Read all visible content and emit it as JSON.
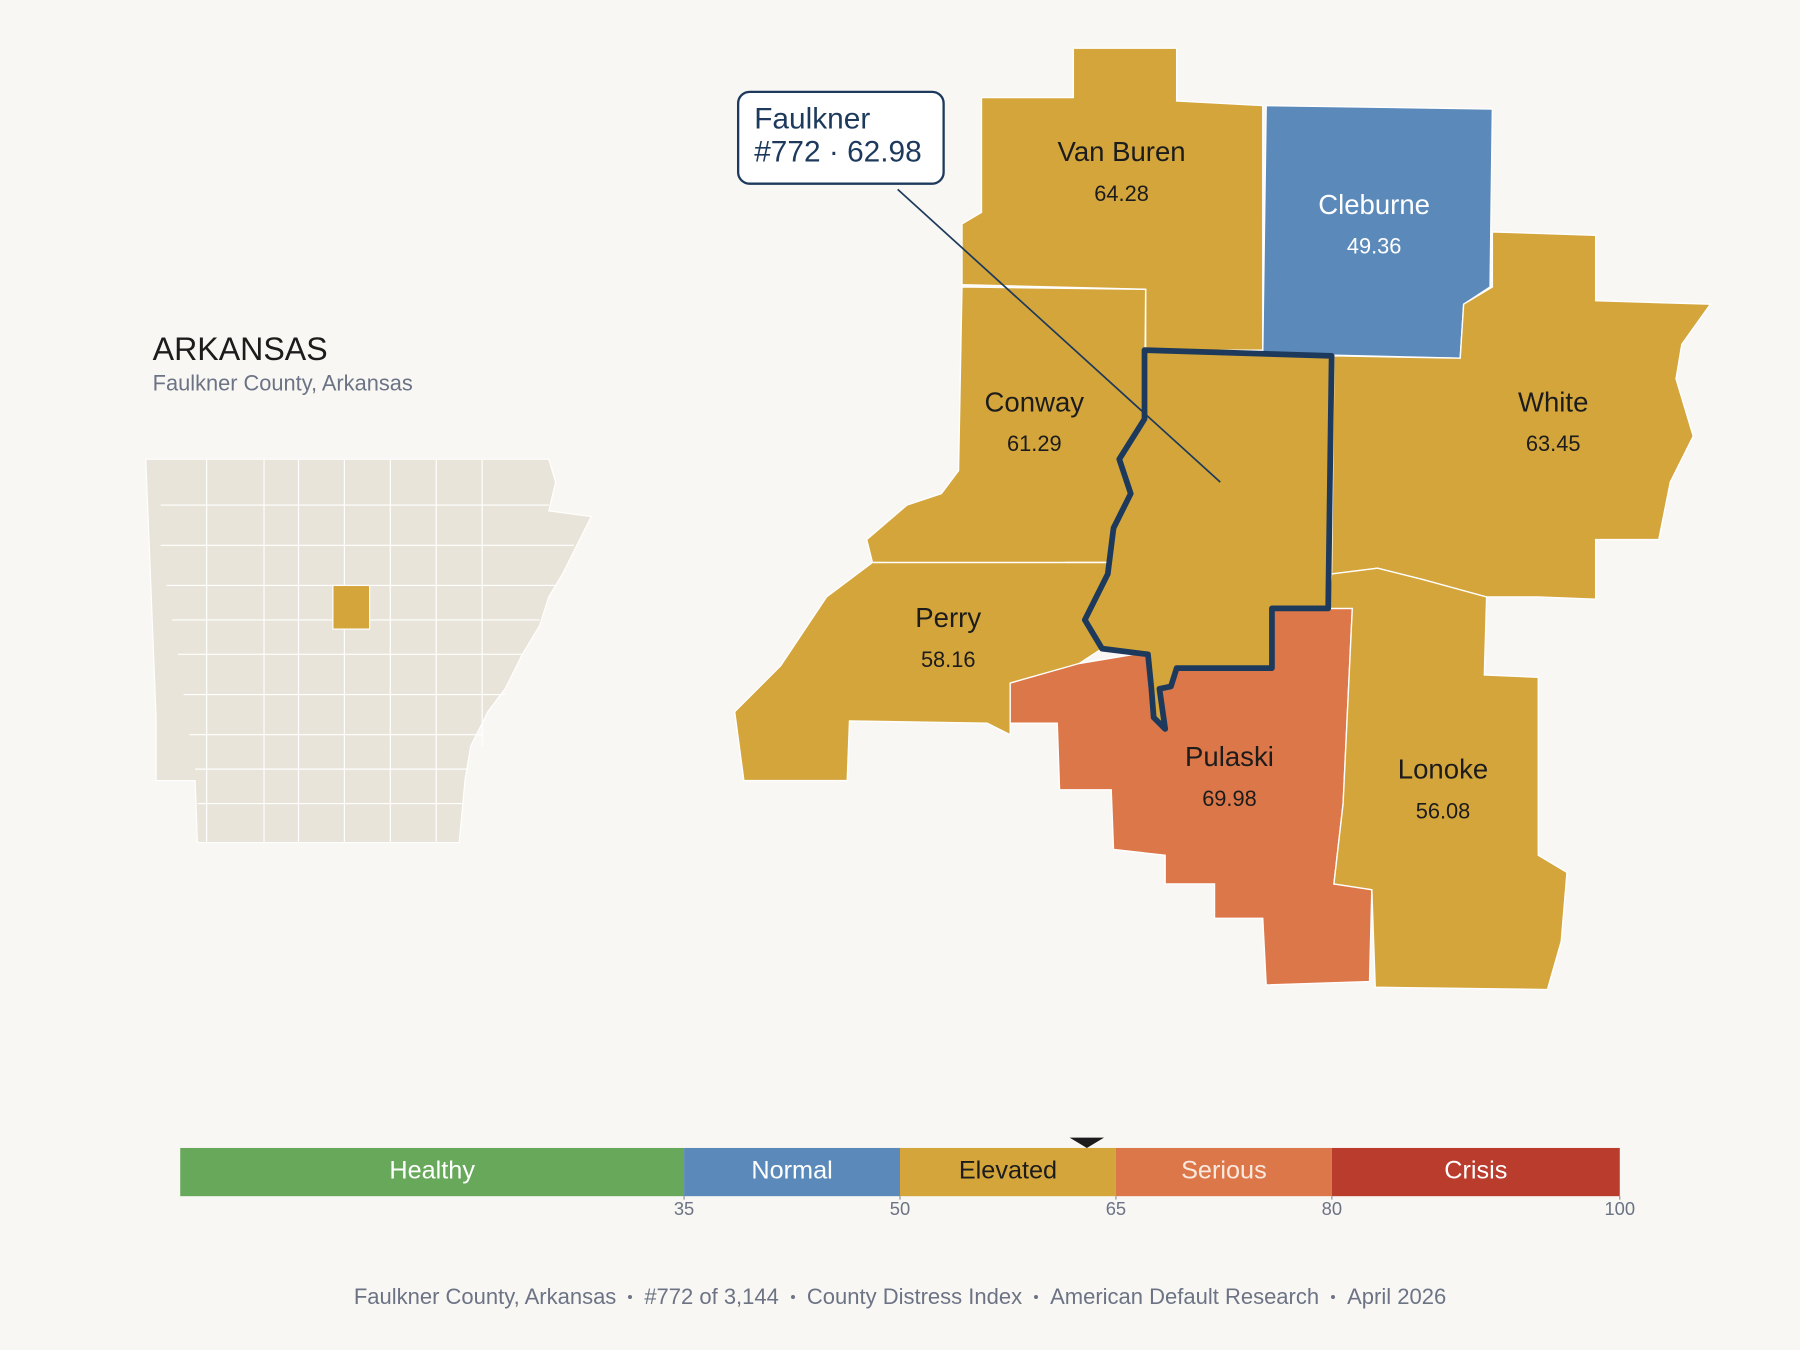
{
  "title": "ARKANSAS",
  "subtitle": "Faulkner County, Arkansas",
  "callout": {
    "name": "Faulkner",
    "detail": "#772 · 62.98"
  },
  "focus_value": 62.98,
  "counties": [
    {
      "name": "Van Buren",
      "value": 64.28
    },
    {
      "name": "Cleburne",
      "value": 49.36
    },
    {
      "name": "White",
      "value": 63.45
    },
    {
      "name": "Conway",
      "value": 61.29
    },
    {
      "name": "Perry",
      "value": 58.16
    },
    {
      "name": "Pulaski",
      "value": 69.98
    },
    {
      "name": "Lonoke",
      "value": 56.08
    }
  ],
  "legend": {
    "lim": [
      0,
      100
    ],
    "bands": [
      {
        "label": "Healthy",
        "to": 35,
        "color": "#67a85a"
      },
      {
        "label": "Normal",
        "to": 50,
        "color": "#5b8aba"
      },
      {
        "label": "Elevated",
        "to": 65,
        "color": "#d4a53b"
      },
      {
        "label": "Serious",
        "to": 80,
        "color": "#dc7749"
      },
      {
        "label": "Crisis",
        "to": 100,
        "color": "#b93c2d"
      }
    ],
    "ticks": [
      35,
      50,
      65,
      80,
      100
    ]
  },
  "footer": [
    "Faulkner County, Arkansas",
    "#772 of 3,144",
    "County Distress Index",
    "American Default Research",
    "April 2026"
  ]
}
